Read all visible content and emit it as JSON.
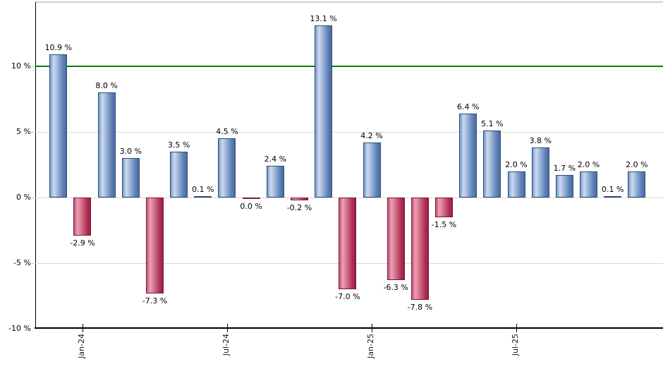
{
  "chart_data": {
    "type": "bar",
    "title": "",
    "xlabel": "",
    "ylabel": "",
    "ylim": [
      -10,
      15
    ],
    "grid": true,
    "unit": "%",
    "values": [
      10.9,
      -2.9,
      8.0,
      3.0,
      -7.3,
      3.5,
      0.1,
      4.5,
      0.0,
      2.4,
      -0.2,
      13.1,
      -7.0,
      4.2,
      -6.3,
      -7.8,
      -1.5,
      6.4,
      5.1,
      2.0,
      3.8,
      1.7,
      2.0,
      0.1,
      2.0
    ],
    "bar_labels": [
      "10.9 %",
      "-2.9 %",
      "8.0 %",
      "3.0 %",
      "-7.3 %",
      "3.5 %",
      "0.1 %",
      "4.5 %",
      "0.0 %",
      "2.4 %",
      "-0.2 %",
      "13.1 %",
      "-7.0 %",
      "4.2 %",
      "-6.3 %",
      "-7.8 %",
      "-1.5 %",
      "6.4 %",
      "5.1 %",
      "2.0 %",
      "3.8 %",
      "1.7 %",
      "2.0 %",
      "0.1 %",
      "2.0 %"
    ],
    "bar_colors": [
      "blue",
      "red",
      "blue",
      "blue",
      "red",
      "blue",
      "blue",
      "blue",
      "red",
      "blue",
      "red",
      "blue",
      "red",
      "blue",
      "red",
      "red",
      "red",
      "blue",
      "blue",
      "blue",
      "blue",
      "blue",
      "blue",
      "blue",
      "blue"
    ],
    "y_axis": {
      "ticks": [
        {
          "value": 10,
          "label": "10 %"
        },
        {
          "value": 5,
          "label": "5 %"
        },
        {
          "value": 0,
          "label": "0 %"
        },
        {
          "value": -5,
          "label": "-5 %"
        },
        {
          "value": -10,
          "label": "-10 %"
        }
      ]
    },
    "x_axis": {
      "ticks": [
        {
          "bar_index": 1,
          "label": "Jan-24"
        },
        {
          "bar_index": 7,
          "label": "Jul-24"
        },
        {
          "bar_index": 13,
          "label": "Jan-25"
        },
        {
          "bar_index": 19,
          "label": "Jul-25"
        }
      ]
    },
    "reference_line": {
      "value": 10,
      "color": "#008000"
    },
    "legend": null,
    "palette": {
      "positive_bar_edge": "#2c4d79",
      "positive_bar_highlight": "#ccd9ef",
      "positive_bar_dark": "#4a6ca2",
      "negative_bar_edge": "#7a1a3c",
      "negative_bar_highlight": "#e9a2b4",
      "negative_bar_dark": "#9c1c44",
      "gridline": "#d9d9d9",
      "axis": "#000000",
      "reference": "#008000",
      "text": "#000000",
      "top_border": "#d0d0d0"
    }
  }
}
